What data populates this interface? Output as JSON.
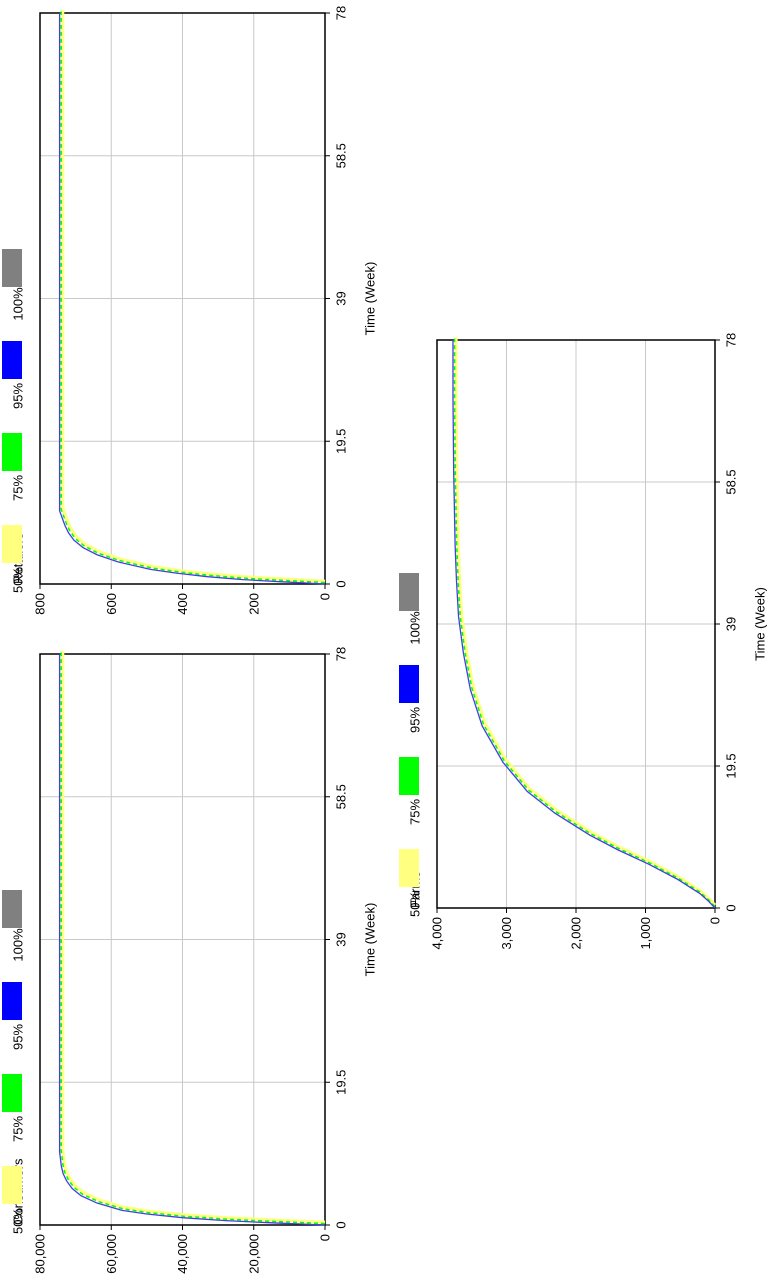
{
  "colors": {
    "band_50": "#ffff80",
    "band_75": "#00ff00",
    "band_95": "#0000ff",
    "band_100": "#808080",
    "mean_line": "#4040e0",
    "grid": "#c8c8c8",
    "frame": "#000000"
  },
  "legend": [
    {
      "label": "50%",
      "color": "#ffff80"
    },
    {
      "label": "75%",
      "color": "#00ff00"
    },
    {
      "label": "95%",
      "color": "#0000ff"
    },
    {
      "label": "100%",
      "color": "#808080"
    }
  ],
  "chart_data": [
    {
      "type": "line",
      "ylabel": "Consumers",
      "xlabel": "Time (Week)",
      "xlim": [
        0,
        78
      ],
      "ylim": [
        0,
        80000
      ],
      "x_ticks": [
        "0",
        "19.5",
        "39",
        "58.5",
        "78"
      ],
      "y_ticks": [
        "0",
        "20,000",
        "40,000",
        "60,000",
        "80,000"
      ],
      "grid": true,
      "legend_position": "top",
      "series": [
        {
          "x": [
            0,
            0.3,
            0.6,
            1,
            1.5,
            2,
            3,
            4,
            5,
            6,
            7,
            8,
            10,
            78
          ],
          "y": [
            0,
            15000,
            28000,
            40000,
            50000,
            57000,
            64000,
            68500,
            71000,
            72500,
            73500,
            74000,
            74500,
            74500
          ]
        }
      ]
    },
    {
      "type": "line",
      "ylabel": "Retailers",
      "xlabel": "Time (Week)",
      "xlim": [
        0,
        78
      ],
      "ylim": [
        0,
        800
      ],
      "x_ticks": [
        "0",
        "19.5",
        "39",
        "58.5",
        "78"
      ],
      "y_ticks": [
        "0",
        "200",
        "400",
        "600",
        "800"
      ],
      "grid": true,
      "legend_position": "top",
      "series": [
        {
          "x": [
            0,
            0.3,
            0.6,
            1,
            1.5,
            2,
            3,
            4,
            5,
            6,
            7,
            8,
            10,
            78
          ],
          "y": [
            0,
            120,
            230,
            330,
            420,
            490,
            580,
            640,
            680,
            705,
            720,
            730,
            745,
            745
          ]
        }
      ]
    },
    {
      "type": "line",
      "ylabel": "Farms",
      "xlabel": "Time (Week)",
      "xlim": [
        0,
        78
      ],
      "ylim": [
        0,
        4000
      ],
      "x_ticks": [
        "0",
        "19.5",
        "39",
        "58.5",
        "78"
      ],
      "y_ticks": [
        "0",
        "1,000",
        "2,000",
        "3,000",
        "4,000"
      ],
      "grid": true,
      "legend_position": "top",
      "series": [
        {
          "x": [
            0,
            1,
            2,
            4,
            6,
            8,
            10,
            13,
            16,
            20,
            25,
            30,
            35,
            40,
            45,
            50,
            55,
            60,
            65,
            70,
            78
          ],
          "y": [
            0,
            100,
            220,
            550,
            950,
            1400,
            1800,
            2300,
            2700,
            3050,
            3350,
            3520,
            3620,
            3690,
            3720,
            3740,
            3750,
            3760,
            3765,
            3770,
            3770
          ]
        }
      ]
    }
  ]
}
